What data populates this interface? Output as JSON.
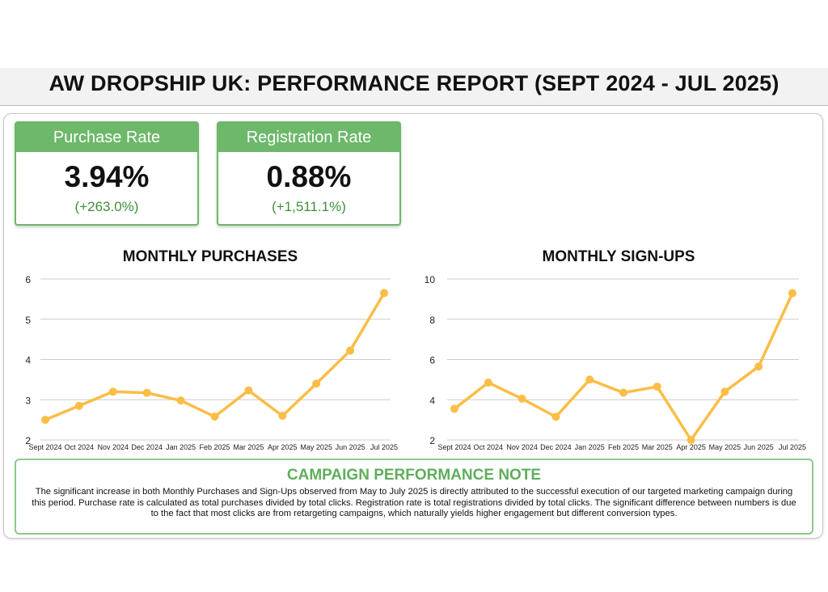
{
  "header": {
    "title": "AW DROPSHIP UK: PERFORMANCE REPORT (SEPT 2024 - JUL 2025)"
  },
  "kpis": [
    {
      "label": "Purchase Rate",
      "value": "3.94%",
      "change": "(+263.0%)"
    },
    {
      "label": "Registration Rate",
      "value": "0.88%",
      "change": "(+1,511.1%)"
    }
  ],
  "colors": {
    "accent": "#6db86a",
    "line": "#fbbd45",
    "grid": "#cccccc"
  },
  "chart_data": [
    {
      "type": "line",
      "title": "MONTHLY PURCHASES",
      "categories": [
        "Sept 2024",
        "Oct 2024",
        "Nov 2024",
        "Dec 2024",
        "Jan 2025",
        "Feb 2025",
        "Mar 2025",
        "Apr 2025",
        "May 2025",
        "Jun 2025",
        "Jul 2025"
      ],
      "values": [
        2.5,
        2.85,
        3.2,
        3.17,
        2.98,
        2.58,
        3.23,
        2.6,
        3.4,
        4.22,
        5.65
      ],
      "ylim": [
        2,
        6
      ],
      "yticks": [
        2,
        3,
        4,
        5,
        6
      ],
      "grid": true
    },
    {
      "type": "line",
      "title": "MONTHLY SIGN-UPS",
      "categories": [
        "Sept 2024",
        "Oct 2024",
        "Nov 2024",
        "Dec 2024",
        "Jan 2025",
        "Feb 2025",
        "Mar 2025",
        "Apr 2025",
        "May 2025",
        "Jun 2025",
        "Jul 2025"
      ],
      "values": [
        3.55,
        4.85,
        4.05,
        3.15,
        5.0,
        4.35,
        4.65,
        2.0,
        4.4,
        5.65,
        9.3
      ],
      "ylim": [
        2,
        10
      ],
      "yticks": [
        2,
        4,
        6,
        8,
        10
      ],
      "grid": true
    }
  ],
  "note": {
    "title": "CAMPAIGN PERFORMANCE NOTE",
    "body": "The significant increase in both Monthly Purchases and Sign-Ups observed from May to July 2025 is directly attributed to the successful execution of our targeted marketing campaign during this period. Purchase rate is calculated as total purchases divided by total clicks. Registration rate is total registrations divided by total clicks. The significant difference between numbers is due to the fact that most clicks are from retargeting campaigns, which naturally yields higher engagement but different conversion types."
  }
}
